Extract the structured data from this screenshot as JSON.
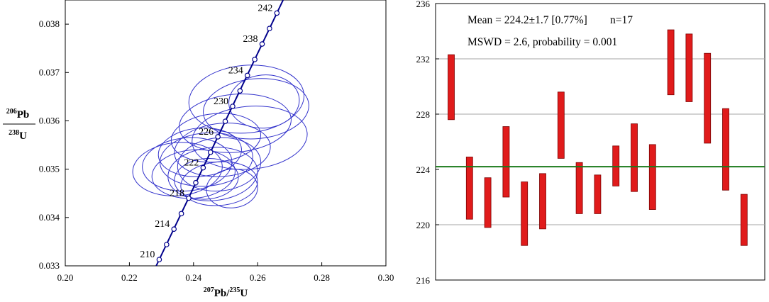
{
  "chart_data": [
    {
      "type": "scatter",
      "subtype": "concordia-ellipses",
      "title": "",
      "xlabel": {
        "iso": "207",
        "el": "Pb",
        "sep": "/",
        "iso2": "235",
        "el2": "U"
      },
      "ylabel": {
        "iso": "206",
        "el": "Pb",
        "iso2": "238",
        "el2": "U"
      },
      "xlim": [
        0.2,
        0.3
      ],
      "ylim": [
        0.033,
        0.0385
      ],
      "xticks": [
        "0.20",
        "0.22",
        "0.24",
        "0.26",
        "0.28",
        "0.30"
      ],
      "yticks": [
        "0.033",
        "0.034",
        "0.035",
        "0.036",
        "0.037",
        "0.038"
      ],
      "concordia_color": "#00008B",
      "ellipse_color": "#3333CC",
      "concordia_ticks": [
        {
          "age": 210,
          "x": 0.2293,
          "y": 0.03313,
          "label": "210"
        },
        {
          "age": 212,
          "x": 0.2316,
          "y": 0.03344,
          "label": ""
        },
        {
          "age": 214,
          "x": 0.2339,
          "y": 0.03376,
          "label": "214"
        },
        {
          "age": 216,
          "x": 0.2362,
          "y": 0.03408,
          "label": ""
        },
        {
          "age": 218,
          "x": 0.2385,
          "y": 0.0344,
          "label": "218"
        },
        {
          "age": 220,
          "x": 0.2407,
          "y": 0.03472,
          "label": ""
        },
        {
          "age": 222,
          "x": 0.243,
          "y": 0.03503,
          "label": "222"
        },
        {
          "age": 224,
          "x": 0.2453,
          "y": 0.03535,
          "label": ""
        },
        {
          "age": 226,
          "x": 0.2476,
          "y": 0.03567,
          "label": "226"
        },
        {
          "age": 228,
          "x": 0.2499,
          "y": 0.03599,
          "label": ""
        },
        {
          "age": 230,
          "x": 0.2522,
          "y": 0.0363,
          "label": "230"
        },
        {
          "age": 232,
          "x": 0.2545,
          "y": 0.03662,
          "label": ""
        },
        {
          "age": 234,
          "x": 0.2568,
          "y": 0.03694,
          "label": "234"
        },
        {
          "age": 236,
          "x": 0.2591,
          "y": 0.03727,
          "label": ""
        },
        {
          "age": 238,
          "x": 0.2614,
          "y": 0.03759,
          "label": "238"
        },
        {
          "age": 240,
          "x": 0.2637,
          "y": 0.03791,
          "label": ""
        },
        {
          "age": 242,
          "x": 0.266,
          "y": 0.03823,
          "label": "242"
        }
      ],
      "ellipses": [
        {
          "cx": 0.2565,
          "cy": 0.03645,
          "rx": 0.018,
          "ry": 0.0007,
          "tilt": 5
        },
        {
          "cx": 0.2595,
          "cy": 0.03625,
          "rx": 0.0165,
          "ry": 0.00062,
          "tilt": 5
        },
        {
          "cx": 0.262,
          "cy": 0.0364,
          "rx": 0.011,
          "ry": 0.00055,
          "tilt": 5
        },
        {
          "cx": 0.253,
          "cy": 0.03595,
          "rx": 0.0175,
          "ry": 0.0006,
          "tilt": 5
        },
        {
          "cx": 0.2575,
          "cy": 0.03565,
          "rx": 0.018,
          "ry": 0.00065,
          "tilt": 5
        },
        {
          "cx": 0.247,
          "cy": 0.03565,
          "rx": 0.014,
          "ry": 0.0005,
          "tilt": 5
        },
        {
          "cx": 0.249,
          "cy": 0.0354,
          "rx": 0.015,
          "ry": 0.00055,
          "tilt": 5
        },
        {
          "cx": 0.242,
          "cy": 0.03535,
          "rx": 0.013,
          "ry": 0.0005,
          "tilt": 5
        },
        {
          "cx": 0.244,
          "cy": 0.0352,
          "rx": 0.0145,
          "ry": 0.00055,
          "tilt": 5
        },
        {
          "cx": 0.238,
          "cy": 0.0351,
          "rx": 0.014,
          "ry": 0.00055,
          "tilt": 5
        },
        {
          "cx": 0.235,
          "cy": 0.035,
          "rx": 0.014,
          "ry": 0.00055,
          "tilt": 5
        },
        {
          "cx": 0.24,
          "cy": 0.0349,
          "rx": 0.013,
          "ry": 0.0005,
          "tilt": 5
        },
        {
          "cx": 0.246,
          "cy": 0.0349,
          "rx": 0.014,
          "ry": 0.00055,
          "tilt": 5
        },
        {
          "cx": 0.248,
          "cy": 0.0347,
          "rx": 0.012,
          "ry": 0.00045,
          "tilt": 5
        },
        {
          "cx": 0.252,
          "cy": 0.0346,
          "rx": 0.008,
          "ry": 0.0004,
          "tilt": 5
        },
        {
          "cx": 0.244,
          "cy": 0.0348,
          "rx": 0.01,
          "ry": 0.00042,
          "tilt": 5
        },
        {
          "cx": 0.248,
          "cy": 0.0351,
          "rx": 0.013,
          "ry": 0.00055,
          "tilt": 5
        }
      ]
    },
    {
      "type": "bar",
      "subtype": "weighted-mean-error-bars",
      "title": "",
      "annotation_line1": {
        "mean": "Mean = 224.2±1.7  [0.77%]",
        "n": "n=17"
      },
      "annotation_line2": "MSWD = 2.6, probability = 0.001",
      "ylim": [
        216,
        236
      ],
      "yticks": [
        "216",
        "220",
        "224",
        "228",
        "232",
        "236"
      ],
      "gridlines": [
        220,
        228,
        232
      ],
      "mean": 224.2,
      "mean_color": "#1A7A1A",
      "bar_color": "#E01B1B",
      "bars": [
        {
          "low": 227.6,
          "high": 232.3
        },
        {
          "low": 220.4,
          "high": 224.9
        },
        {
          "low": 219.8,
          "high": 223.4
        },
        {
          "low": 222.0,
          "high": 227.1
        },
        {
          "low": 218.5,
          "high": 223.1
        },
        {
          "low": 219.7,
          "high": 223.7
        },
        {
          "low": 224.8,
          "high": 229.6
        },
        {
          "low": 220.8,
          "high": 224.5
        },
        {
          "low": 220.8,
          "high": 223.6
        },
        {
          "low": 222.8,
          "high": 225.7
        },
        {
          "low": 222.4,
          "high": 227.3
        },
        {
          "low": 221.1,
          "high": 225.8
        },
        {
          "low": 229.4,
          "high": 234.1
        },
        {
          "low": 228.9,
          "high": 233.8
        },
        {
          "low": 225.9,
          "high": 232.4
        },
        {
          "low": 222.5,
          "high": 228.4
        },
        {
          "low": 218.5,
          "high": 222.2
        }
      ]
    }
  ]
}
